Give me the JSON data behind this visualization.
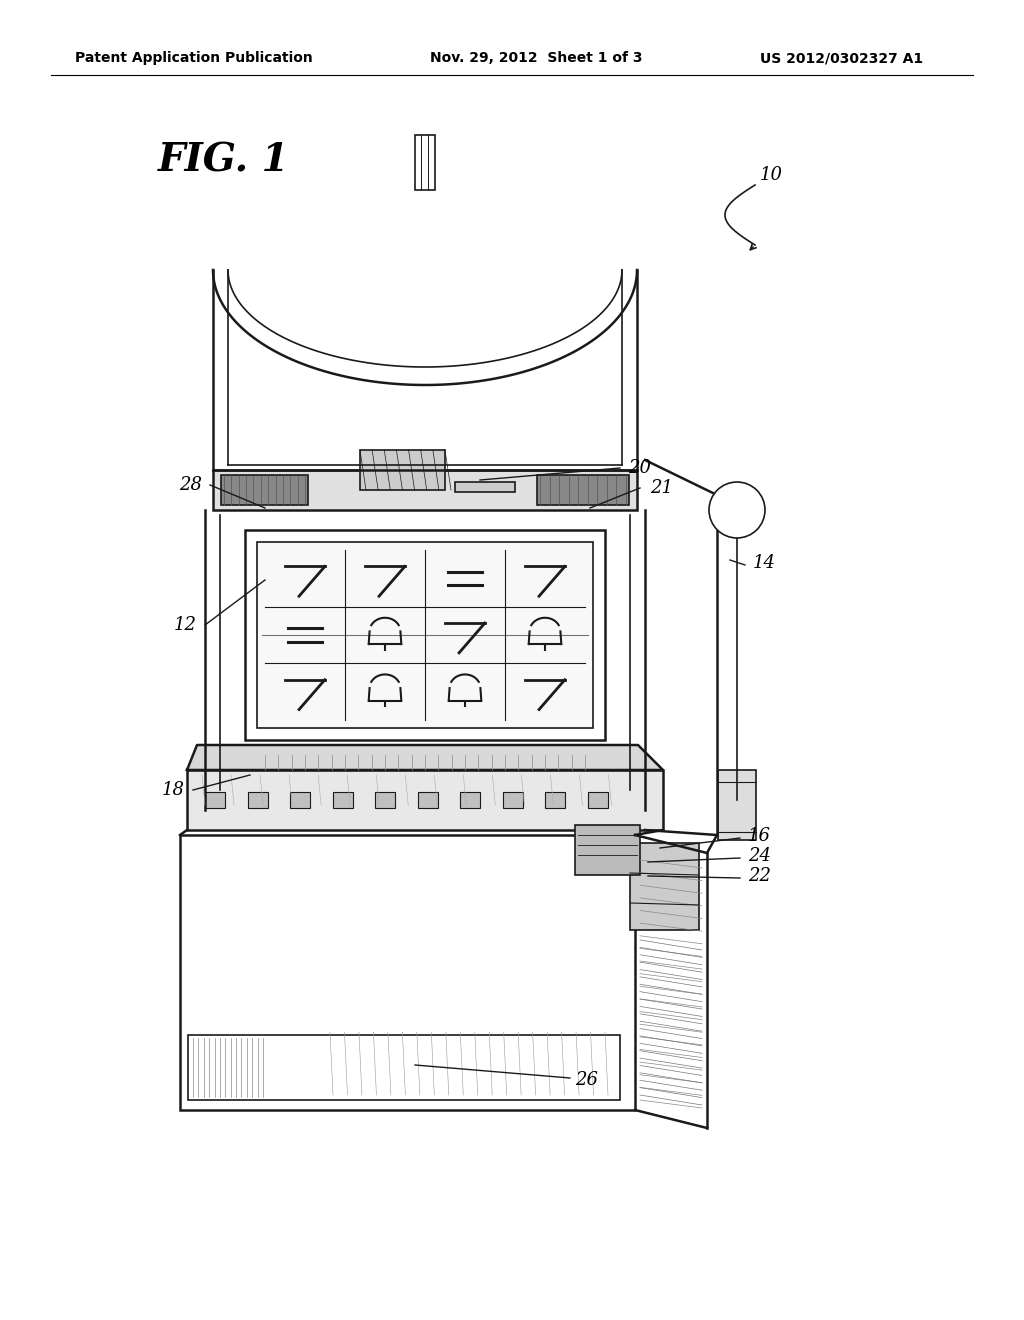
{
  "header_left": "Patent Application Publication",
  "header_center": "Nov. 29, 2012  Sheet 1 of 3",
  "header_right": "US 2012/0302327 A1",
  "fig_label": "FIG. 1",
  "background_color": "#ffffff",
  "line_color": "#1a1a1a",
  "gray_light": "#cccccc",
  "gray_med": "#999999",
  "gray_dark": "#555555"
}
